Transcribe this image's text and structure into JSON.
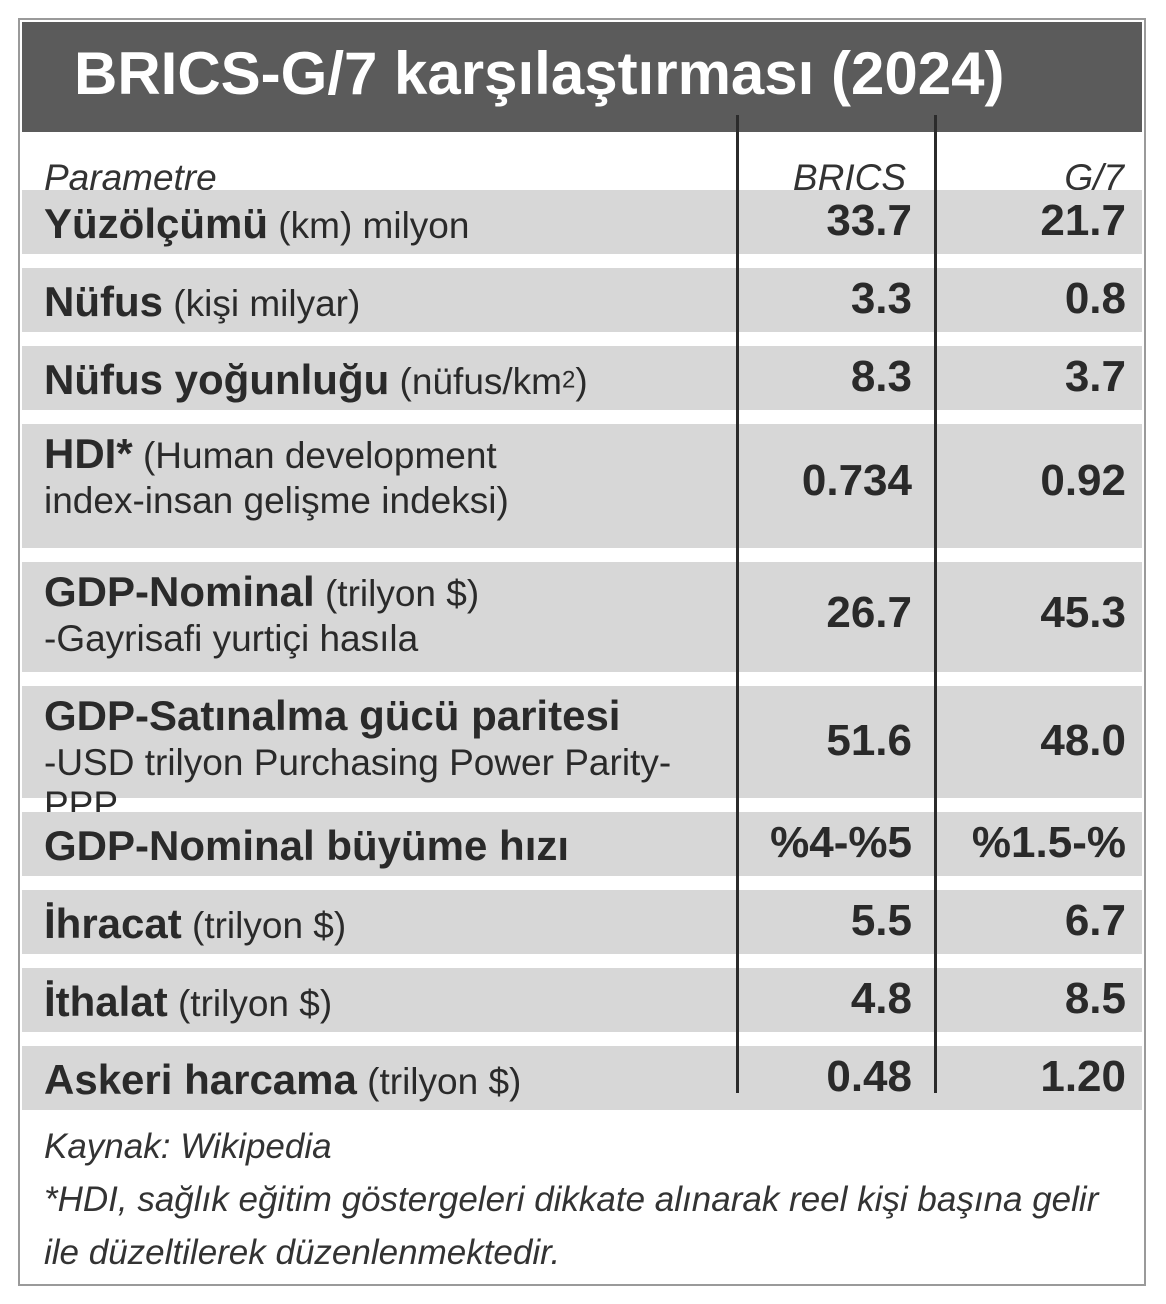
{
  "title": "BRICS-G/7 karşılaştırması (2024)",
  "header": {
    "param": "Parametre",
    "brics": "BRICS",
    "g7": "G/7"
  },
  "rows": [
    {
      "bold": "Yüzölçümü",
      "rest": " (km) milyon",
      "line2": "",
      "brics": "33.7",
      "g7": "21.7"
    },
    {
      "bold": "Nüfus",
      "rest": " (kişi milyar)",
      "line2": "",
      "brics": "3.3",
      "g7": "0.8"
    },
    {
      "bold": "Nüfus yoğunluğu",
      "rest": " (nüfus/km",
      "sup": "2",
      "rest2": ")",
      "line2": "",
      "brics": "8.3",
      "g7": "3.7"
    },
    {
      "bold": "HDI*",
      "rest": " (Human development",
      "line2": "index-insan gelişme indeksi)",
      "brics": "0.734",
      "g7": "0.92"
    },
    {
      "bold": "GDP-Nominal",
      "rest": " (trilyon $)",
      "line2": "-Gayrisafi yurtiçi hasıla",
      "brics": "26.7",
      "g7": "45.3"
    },
    {
      "bold": "GDP-Satınalma gücü paritesi",
      "rest": "",
      "line2": "-USD trilyon Purchasing Power Parity-PPP",
      "brics": "51.6",
      "g7": "48.0"
    },
    {
      "bold": "GDP-Nominal büyüme hızı",
      "rest": "",
      "line2": "",
      "brics": "%4-%5",
      "g7": "%1.5-%"
    },
    {
      "bold": "İhracat",
      "rest": " (trilyon $)",
      "line2": "",
      "brics": "5.5",
      "g7": "6.7"
    },
    {
      "bold": "İthalat",
      "rest": " (trilyon $)",
      "line2": "",
      "brics": "4.8",
      "g7": "8.5"
    },
    {
      "bold": "Askeri harcama",
      "rest": " (trilyon $)",
      "line2": "",
      "brics": "0.48",
      "g7": "1.20"
    }
  ],
  "footer": {
    "source": "Kaynak: Wikipedia",
    "note": "*HDI, sağlık eğitim göstergeleri dikkate alınarak reel kişi başına gelir ile düzeltilerek düzenlenmektedir."
  }
}
